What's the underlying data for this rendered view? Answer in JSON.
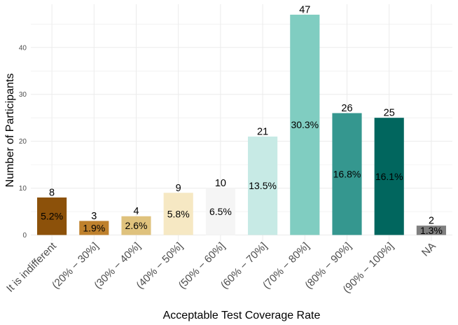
{
  "chart_data": {
    "type": "bar",
    "xlabel": "Acceptable Test Coverage Rate",
    "ylabel": "Number of Participants",
    "ylim": [
      0,
      47
    ],
    "yticks": [
      "0",
      "10",
      "20",
      "30",
      "40"
    ],
    "grid": true,
    "categories": [
      "It is indifferent",
      "(20% − 30%]",
      "(30% − 40%]",
      "(40% − 50%]",
      "(50% − 60%]",
      "(60% − 70%]",
      "(70% − 80%]",
      "(80% − 90%]",
      "(90% − 100%]",
      "NA"
    ],
    "values": [
      8,
      3,
      4,
      9,
      10,
      21,
      47,
      26,
      25,
      2
    ],
    "count_labels": [
      "8",
      "3",
      "4",
      "9",
      "10",
      "21",
      "47",
      "26",
      "25",
      "2"
    ],
    "percent_labels": [
      "5.2%",
      "1.9%",
      "2.6%",
      "5.8%",
      "6.5%",
      "13.5%",
      "30.3%",
      "16.8%",
      "16.1%",
      "1.3%"
    ],
    "colors": [
      "#8c510a",
      "#bf812d",
      "#dfc27d",
      "#f6e8c3",
      "#f5f5f5",
      "#c7eae5",
      "#80cdc1",
      "#35978f",
      "#01665e",
      "#7f7f7f"
    ]
  }
}
